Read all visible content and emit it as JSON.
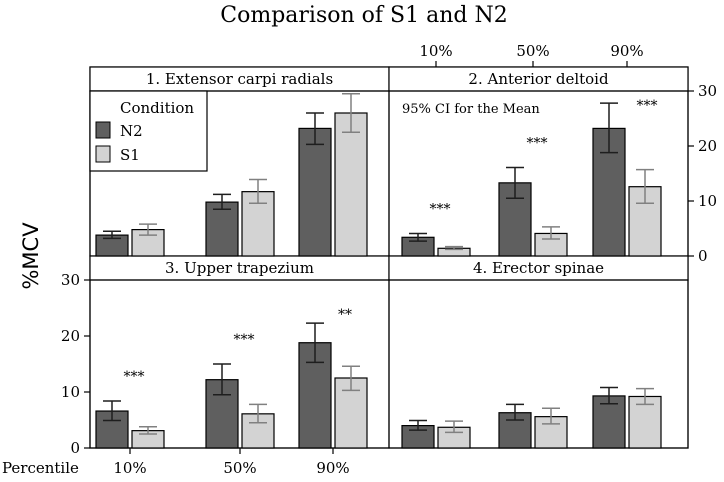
{
  "chart_data": {
    "type": "bar",
    "title": "Comparison of S1 and N2",
    "ylabel": "%MCV",
    "xlabel": "Percentile",
    "ylim": [
      0,
      30
    ],
    "yticks": [
      "0",
      "10",
      "20",
      "30"
    ],
    "categories": [
      "10%",
      "50%",
      "90%"
    ],
    "legend": {
      "title": "Condition",
      "placement": "top-left panel",
      "entries": [
        {
          "name": "N2",
          "color": "#5f5f5f"
        },
        {
          "name": "S1",
          "color": "#d3d3d3"
        }
      ]
    },
    "annotation": "95% CI for the Mean",
    "panels": [
      {
        "name": "1. Extensor carpi radials",
        "series": [
          {
            "name": "N2",
            "values": [
              3.8,
              9.8,
              23.2
            ],
            "ci_low": [
              3.2,
              8.5,
              20.3
            ],
            "ci_high": [
              4.5,
              11.2,
              26.0
            ]
          },
          {
            "name": "S1",
            "values": [
              4.8,
              11.7,
              26.0
            ],
            "ci_low": [
              3.8,
              9.6,
              22.5
            ],
            "ci_high": [
              5.8,
              13.9,
              29.5
            ]
          }
        ],
        "significance": [
          "",
          "",
          ""
        ]
      },
      {
        "name": "2. Anterior deltoid",
        "series": [
          {
            "name": "N2",
            "values": [
              3.4,
              13.3,
              23.2
            ],
            "ci_low": [
              2.7,
              10.5,
              18.8
            ],
            "ci_high": [
              4.1,
              16.1,
              27.8
            ]
          },
          {
            "name": "S1",
            "values": [
              1.4,
              4.1,
              12.6
            ],
            "ci_low": [
              1.2,
              3.1,
              9.6
            ],
            "ci_high": [
              1.7,
              5.3,
              15.7
            ]
          }
        ],
        "significance": [
          "***",
          "***",
          "***"
        ]
      },
      {
        "name": "3. Upper trapezium",
        "series": [
          {
            "name": "N2",
            "values": [
              6.6,
              12.2,
              18.8
            ],
            "ci_low": [
              4.9,
              9.5,
              15.3
            ],
            "ci_high": [
              8.4,
              15.0,
              22.3
            ]
          },
          {
            "name": "S1",
            "values": [
              3.1,
              6.1,
              12.5
            ],
            "ci_low": [
              2.5,
              4.5,
              10.3
            ],
            "ci_high": [
              3.8,
              7.8,
              14.6
            ]
          }
        ],
        "significance": [
          "***",
          "***",
          "**"
        ]
      },
      {
        "name": "4. Erector spinae",
        "series": [
          {
            "name": "N2",
            "values": [
              4.0,
              6.3,
              9.3
            ],
            "ci_low": [
              3.2,
              5.0,
              7.9
            ],
            "ci_high": [
              4.9,
              7.8,
              10.8
            ]
          },
          {
            "name": "S1",
            "values": [
              3.7,
              5.6,
              9.2
            ],
            "ci_low": [
              2.8,
              4.3,
              7.8
            ],
            "ci_high": [
              4.8,
              7.1,
              10.6
            ]
          }
        ],
        "significance": [
          "",
          "",
          ""
        ]
      }
    ]
  }
}
